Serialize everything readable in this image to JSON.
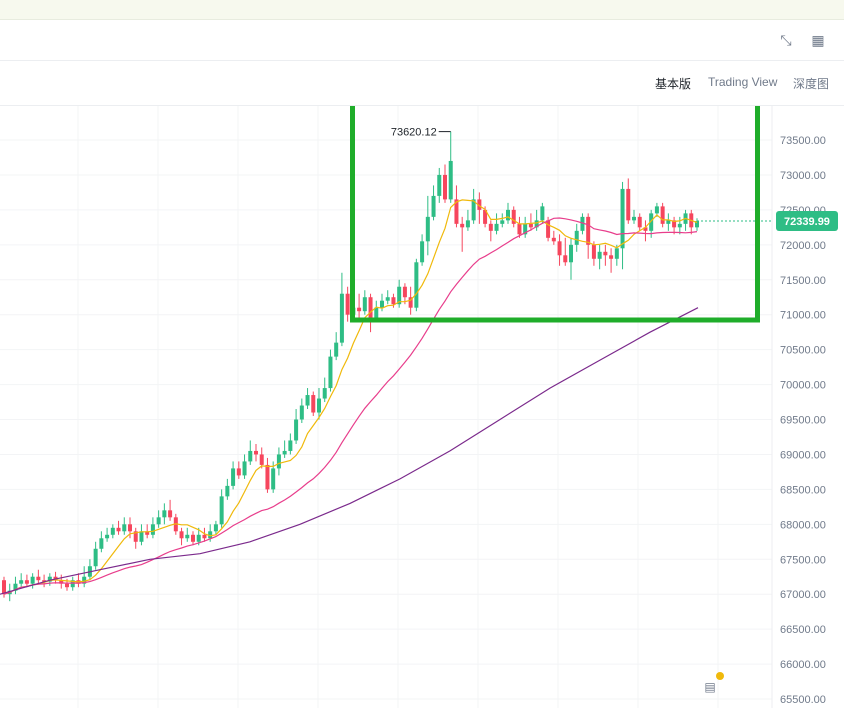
{
  "toolbar": {
    "icons": [
      "collapse-icon",
      "layout-grid-icon"
    ]
  },
  "modes": {
    "basic": "基本版",
    "tradingview": "Trading View",
    "depth": "深度图",
    "active": "basic"
  },
  "colors": {
    "up": "#2ebd85",
    "down": "#f6465d",
    "ma_short": "#f0b90b",
    "ma_mid": "#e83e8c",
    "ma_long": "#7b2a8c",
    "highlight": "#1fad2a"
  },
  "chart_data": {
    "type": "candlestick",
    "ylim": [
      65000,
      74000
    ],
    "y_ticks": [
      65500,
      66000,
      66500,
      67000,
      67500,
      68000,
      68500,
      69000,
      69500,
      70000,
      70500,
      71000,
      71500,
      72000,
      72500,
      73000,
      73500
    ],
    "y_tick_labels": [
      "65500.00",
      "66000.00",
      "66500.00",
      "67000.00",
      "67500.00",
      "68000.00",
      "68500.00",
      "69000.00",
      "69500.00",
      "70000.00",
      "70500.00",
      "71000.00",
      "71500.00",
      "72000.00",
      "72500.00",
      "73000.00",
      "73500.00"
    ],
    "last_price": 72339.99,
    "last_price_label": "72339.99",
    "high_label": "73620.12",
    "high_value": 73620.12,
    "candles": [
      [
        67200,
        67000,
        67250,
        66950
      ],
      [
        67000,
        67050,
        67150,
        66900
      ],
      [
        67050,
        67150,
        67250,
        67000
      ],
      [
        67150,
        67200,
        67300,
        67100
      ],
      [
        67200,
        67150,
        67280,
        67100
      ],
      [
        67150,
        67250,
        67300,
        67080
      ],
      [
        67250,
        67200,
        67350,
        67150
      ],
      [
        67200,
        67180,
        67280,
        67100
      ],
      [
        67180,
        67250,
        67300,
        67120
      ],
      [
        67250,
        67200,
        67320,
        67150
      ],
      [
        67200,
        67150,
        67280,
        67080
      ],
      [
        67150,
        67100,
        67220,
        67050
      ],
      [
        67100,
        67200,
        67250,
        67050
      ],
      [
        67200,
        67150,
        67300,
        67100
      ],
      [
        67150,
        67250,
        67400,
        67100
      ],
      [
        67250,
        67400,
        67500,
        67200
      ],
      [
        67400,
        67650,
        67750,
        67350
      ],
      [
        67650,
        67800,
        67900,
        67600
      ],
      [
        67800,
        67850,
        67950,
        67750
      ],
      [
        67850,
        67950,
        68000,
        67800
      ],
      [
        67950,
        67900,
        68050,
        67850
      ],
      [
        67900,
        68000,
        68100,
        67850
      ],
      [
        68000,
        67900,
        68100,
        67800
      ],
      [
        67900,
        67750,
        67950,
        67650
      ],
      [
        67750,
        67900,
        68000,
        67700
      ],
      [
        67900,
        67850,
        68000,
        67800
      ],
      [
        67850,
        68000,
        68100,
        67800
      ],
      [
        68000,
        68100,
        68200,
        67950
      ],
      [
        68100,
        68200,
        68300,
        68000
      ],
      [
        68200,
        68100,
        68350,
        68050
      ],
      [
        68100,
        67900,
        68150,
        67850
      ],
      [
        67900,
        67800,
        67950,
        67700
      ],
      [
        67800,
        67850,
        67950,
        67750
      ],
      [
        67850,
        67750,
        67900,
        67700
      ],
      [
        67750,
        67850,
        67950,
        67700
      ],
      [
        67850,
        67800,
        67950,
        67750
      ],
      [
        67800,
        67900,
        68000,
        67750
      ],
      [
        67900,
        68000,
        68050,
        67850
      ],
      [
        68000,
        68400,
        68500,
        67950
      ],
      [
        68400,
        68550,
        68650,
        68350
      ],
      [
        68550,
        68800,
        68900,
        68500
      ],
      [
        68800,
        68700,
        68900,
        68650
      ],
      [
        68700,
        68900,
        69000,
        68650
      ],
      [
        68900,
        69050,
        69200,
        68850
      ],
      [
        69050,
        69000,
        69150,
        68900
      ],
      [
        69000,
        68850,
        69100,
        68800
      ],
      [
        68850,
        68500,
        68950,
        68450
      ],
      [
        68500,
        68800,
        68900,
        68450
      ],
      [
        68800,
        69000,
        69100,
        68700
      ],
      [
        69000,
        69050,
        69200,
        68950
      ],
      [
        69050,
        69200,
        69300,
        69000
      ],
      [
        69200,
        69500,
        69650,
        69150
      ],
      [
        69500,
        69700,
        69800,
        69450
      ],
      [
        69700,
        69850,
        69950,
        69650
      ],
      [
        69850,
        69600,
        69900,
        69550
      ],
      [
        69600,
        69800,
        69950,
        69500
      ],
      [
        69800,
        69950,
        70100,
        69750
      ],
      [
        69950,
        70400,
        70500,
        69900
      ],
      [
        70400,
        70600,
        70750,
        70350
      ],
      [
        70600,
        71300,
        71600,
        70550
      ],
      [
        71300,
        71000,
        71400,
        70900
      ],
      [
        71000,
        71100,
        71200,
        70950
      ],
      [
        71100,
        71050,
        71300,
        70950
      ],
      [
        71050,
        71250,
        71350,
        71000
      ],
      [
        71250,
        70950,
        71300,
        70750
      ],
      [
        70950,
        71100,
        71200,
        70900
      ],
      [
        71100,
        71200,
        71300,
        71050
      ],
      [
        71200,
        71250,
        71350,
        71150
      ],
      [
        71250,
        71150,
        71300,
        71100
      ],
      [
        71150,
        71400,
        71500,
        71100
      ],
      [
        71400,
        71250,
        71450,
        71150
      ],
      [
        71250,
        71100,
        71400,
        71000
      ],
      [
        71100,
        71750,
        71800,
        71050
      ],
      [
        71750,
        72050,
        72150,
        71700
      ],
      [
        72050,
        72400,
        72700,
        71850
      ],
      [
        72400,
        72700,
        72850,
        72350
      ],
      [
        72700,
        73000,
        73100,
        72600
      ],
      [
        73000,
        72650,
        73150,
        72600
      ],
      [
        72650,
        73200,
        73620,
        72600
      ],
      [
        72650,
        72300,
        72850,
        72250
      ],
      [
        72300,
        72250,
        72400,
        71900
      ],
      [
        72250,
        72350,
        72500,
        72200
      ],
      [
        72350,
        72650,
        72800,
        72300
      ],
      [
        72650,
        72500,
        72750,
        72300
      ],
      [
        72500,
        72300,
        72550,
        72250
      ],
      [
        72300,
        72200,
        72350,
        72050
      ],
      [
        72200,
        72300,
        72450,
        72150
      ],
      [
        72300,
        72350,
        72450,
        72250
      ],
      [
        72350,
        72500,
        72600,
        72300
      ],
      [
        72500,
        72300,
        72550,
        72250
      ],
      [
        72300,
        72150,
        72400,
        72100
      ],
      [
        72150,
        72300,
        72400,
        72100
      ],
      [
        72300,
        72250,
        72450,
        72200
      ],
      [
        72250,
        72350,
        72500,
        72200
      ],
      [
        72350,
        72550,
        72600,
        72300
      ],
      [
        72350,
        72100,
        72400,
        72050
      ],
      [
        72100,
        72050,
        72200,
        72000
      ],
      [
        72050,
        71850,
        72150,
        71700
      ],
      [
        71850,
        71750,
        72100,
        71700
      ],
      [
        71750,
        72000,
        72100,
        71500
      ],
      [
        72000,
        72200,
        72300,
        71900
      ],
      [
        72200,
        72400,
        72450,
        72150
      ],
      [
        72400,
        72000,
        72450,
        71800
      ],
      [
        72000,
        71800,
        72050,
        71700
      ],
      [
        71800,
        71900,
        72000,
        71650
      ],
      [
        71900,
        71850,
        72000,
        71700
      ],
      [
        71850,
        71800,
        71950,
        71600
      ],
      [
        71800,
        71950,
        72000,
        71700
      ],
      [
        71950,
        72800,
        72900,
        71650
      ],
      [
        72800,
        72350,
        72950,
        72300
      ],
      [
        72350,
        72400,
        72500,
        72300
      ],
      [
        72400,
        72250,
        72450,
        72200
      ],
      [
        72250,
        72200,
        72350,
        72050
      ],
      [
        72200,
        72450,
        72500,
        72100
      ],
      [
        72450,
        72550,
        72600,
        72400
      ],
      [
        72550,
        72300,
        72600,
        72250
      ],
      [
        72300,
        72350,
        72450,
        72200
      ],
      [
        72350,
        72250,
        72400,
        72150
      ],
      [
        72250,
        72300,
        72400,
        72150
      ],
      [
        72300,
        72450,
        72500,
        72200
      ],
      [
        72450,
        72250,
        72500,
        72150
      ],
      [
        72250,
        72340,
        72380,
        72200
      ]
    ],
    "ma_long": [
      [
        0,
        67000
      ],
      [
        50,
        67200
      ],
      [
        100,
        67350
      ],
      [
        150,
        67500
      ],
      [
        200,
        67580
      ],
      [
        250,
        67750
      ],
      [
        300,
        68000
      ],
      [
        350,
        68300
      ],
      [
        400,
        68650
      ],
      [
        450,
        69050
      ],
      [
        500,
        69500
      ],
      [
        550,
        69950
      ],
      [
        600,
        70350
      ],
      [
        650,
        70750
      ],
      [
        698,
        71100
      ]
    ],
    "highlight_box": {
      "label": ""
    }
  },
  "calendar": {
    "icon": "calendar-icon"
  }
}
